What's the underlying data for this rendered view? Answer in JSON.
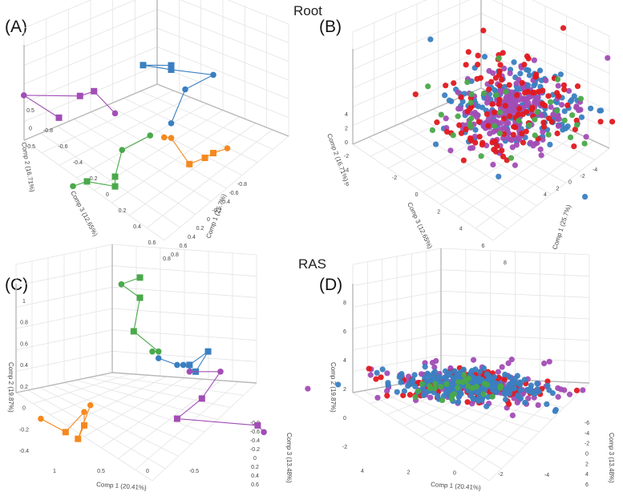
{
  "sections": {
    "top": "Root",
    "bottom": "RAS"
  },
  "colors": {
    "blue": "#3a7fc1",
    "green": "#4aa94a",
    "orange": "#f5891f",
    "purple": "#a24db5",
    "red": "#e0191f"
  },
  "chart_data": [
    {
      "id": "A",
      "type": "scatter",
      "panel_label": "(A)",
      "title": "",
      "axes": {
        "x": {
          "label": "Comp 1 (25.7%)",
          "ticks": [
            "0.8",
            "0.6",
            "0.4",
            "0.2",
            "0",
            "-0.2",
            "-0.4",
            "-0.6",
            "-0.8"
          ]
        },
        "y": {
          "label": "Comp 2 (16.71%)",
          "ticks": [
            "0.5",
            "0",
            "-0.5"
          ]
        },
        "z": {
          "label": "Comp 3 (12.65%)",
          "ticks": [
            "-0.8",
            "-0.6",
            "-0.4",
            "-0.2",
            "0",
            "0.2",
            "0.4",
            "0.6",
            "0.8"
          ]
        }
      },
      "series": [
        {
          "color": "blue",
          "connected": true,
          "points": [
            {
              "x": -0.2,
              "y": 0.45,
              "z": -0.3,
              "marker": "square"
            },
            {
              "x": -0.35,
              "y": 0.4,
              "z": -0.25,
              "marker": "square"
            },
            {
              "x": -0.3,
              "y": 0.3,
              "z": -0.4,
              "marker": "square"
            },
            {
              "x": -0.05,
              "y": 0.35,
              "z": -0.45,
              "marker": "circle"
            },
            {
              "x": -0.1,
              "y": 0.25,
              "z": -0.3,
              "marker": "circle"
            },
            {
              "x": 0.0,
              "y": 0.05,
              "z": -0.1,
              "marker": "circle"
            }
          ]
        },
        {
          "color": "orange",
          "connected": true,
          "points": [
            {
              "x": 0.5,
              "y": 0.1,
              "z": 0.0,
              "marker": "circle"
            },
            {
              "x": 0.45,
              "y": 0.05,
              "z": 0.05,
              "marker": "square"
            },
            {
              "x": 0.42,
              "y": 0.0,
              "z": 0.08,
              "marker": "square"
            },
            {
              "x": 0.38,
              "y": -0.05,
              "z": 0.15,
              "marker": "square"
            },
            {
              "x": 0.1,
              "y": 0.0,
              "z": 0.0,
              "marker": "circle"
            },
            {
              "x": 0.05,
              "y": -0.02,
              "z": 0.0,
              "marker": "circle"
            }
          ]
        },
        {
          "color": "green",
          "connected": true,
          "points": [
            {
              "x": 0.0,
              "y": 0.0,
              "z": 0.05,
              "marker": "circle"
            },
            {
              "x": -0.05,
              "y": -0.1,
              "z": 0.2,
              "marker": "circle"
            },
            {
              "x": 0.05,
              "y": -0.25,
              "z": 0.35,
              "marker": "square"
            },
            {
              "x": 0.1,
              "y": -0.3,
              "z": 0.4,
              "marker": "square"
            },
            {
              "x": -0.05,
              "y": -0.3,
              "z": 0.45,
              "marker": "square"
            },
            {
              "x": -0.1,
              "y": -0.35,
              "z": 0.5,
              "marker": "circle"
            }
          ]
        },
        {
          "color": "purple",
          "connected": true,
          "points": [
            {
              "x": -0.3,
              "y": 0.05,
              "z": 0.0,
              "marker": "circle"
            },
            {
              "x": -0.55,
              "y": 0.1,
              "z": -0.1,
              "marker": "square"
            },
            {
              "x": -0.6,
              "y": 0.05,
              "z": -0.05,
              "marker": "square"
            },
            {
              "x": -0.95,
              "y": -0.1,
              "z": 0.0,
              "marker": "circle"
            },
            {
              "x": -0.6,
              "y": -0.1,
              "z": 0.1,
              "marker": "square"
            }
          ]
        }
      ]
    },
    {
      "id": "B",
      "type": "scatter",
      "panel_label": "(B)",
      "title": "",
      "axes": {
        "x": {
          "label": "Comp 1 (25.7%)",
          "ticks": [
            "4",
            "2",
            "0",
            "-2",
            "-4"
          ]
        },
        "y": {
          "label": "Comp 2 (16.71%)",
          "ticks": [
            "4",
            "2",
            "0",
            "-2",
            "-4",
            "-6"
          ]
        },
        "z": {
          "label": "Comp 3 (12.65%)",
          "ticks": [
            "-2",
            "0",
            "2",
            "4",
            "6",
            "8"
          ]
        }
      },
      "series": [
        {
          "color": "blue",
          "note": "dense cluster of circles centred near origin (spread ±4)"
        },
        {
          "color": "green",
          "note": "sparse circles within the cluster"
        },
        {
          "color": "red",
          "note": "circles scattered through and around the cluster"
        },
        {
          "color": "purple",
          "note": "circles forming the bulk of the cluster"
        }
      ]
    },
    {
      "id": "C",
      "type": "scatter",
      "panel_label": "(C)",
      "title": "",
      "axes": {
        "x": {
          "label": "Comp 1 (20.41%)",
          "ticks": [
            "1",
            "0.5",
            "0",
            "-0.5"
          ]
        },
        "y": {
          "label": "Comp 2 (19.87%)",
          "ticks": [
            "1",
            "0.8",
            "0.6",
            "0.4",
            "0.2",
            "0",
            "-0.2",
            "-0.4"
          ]
        },
        "z": {
          "label": "Comp 3 (13.48%)",
          "ticks": [
            "-0.8",
            "-0.6",
            "-0.4",
            "-0.2",
            "0",
            "0.2",
            "0.4",
            "0.6"
          ]
        }
      },
      "series": [
        {
          "color": "green",
          "connected": true,
          "points": [
            {
              "x": 0.2,
              "y": 1.0,
              "z": 0.0,
              "marker": "square"
            },
            {
              "x": 0.35,
              "y": 0.95,
              "z": 0.0,
              "marker": "circle"
            },
            {
              "x": 0.2,
              "y": 0.85,
              "z": 0.0,
              "marker": "square"
            },
            {
              "x": 0.25,
              "y": 0.6,
              "z": 0.0,
              "marker": "square"
            },
            {
              "x": 0.05,
              "y": 0.45,
              "z": 0.0,
              "marker": "circle"
            },
            {
              "x": 0.1,
              "y": 0.45,
              "z": 0.0,
              "marker": "circle"
            }
          ]
        },
        {
          "color": "blue",
          "connected": true,
          "points": [
            {
              "x": 0.05,
              "y": 0.4,
              "z": 0.0,
              "marker": "circle"
            },
            {
              "x": -0.1,
              "y": 0.35,
              "z": 0.0,
              "marker": "circle"
            },
            {
              "x": -0.2,
              "y": 0.35,
              "z": 0.0,
              "marker": "square"
            },
            {
              "x": -0.35,
              "y": 0.45,
              "z": 0.0,
              "marker": "square"
            },
            {
              "x": -0.25,
              "y": 0.3,
              "z": 0.0,
              "marker": "square"
            },
            {
              "x": -0.15,
              "y": 0.35,
              "z": 0.0,
              "marker": "circle"
            }
          ]
        },
        {
          "color": "orange",
          "connected": true,
          "points": [
            {
              "x": 1.0,
              "y": -0.05,
              "z": 0.0,
              "marker": "circle"
            },
            {
              "x": 0.8,
              "y": -0.15,
              "z": 0.0,
              "marker": "square"
            },
            {
              "x": 0.65,
              "y": 0.0,
              "z": 0.0,
              "marker": "circle"
            },
            {
              "x": 0.65,
              "y": -0.1,
              "z": 0.0,
              "marker": "square"
            },
            {
              "x": 0.7,
              "y": -0.2,
              "z": 0.0,
              "marker": "square"
            },
            {
              "x": 0.6,
              "y": 0.05,
              "z": 0.0,
              "marker": "circle"
            }
          ]
        },
        {
          "color": "purple",
          "connected": true,
          "points": [
            {
              "x": -0.2,
              "y": 0.3,
              "z": 0.0,
              "marker": "circle"
            },
            {
              "x": -0.45,
              "y": 0.3,
              "z": 0.0,
              "marker": "circle"
            },
            {
              "x": -0.3,
              "y": 0.1,
              "z": 0.0,
              "marker": "square"
            },
            {
              "x": -0.1,
              "y": -0.05,
              "z": 0.0,
              "marker": "square"
            },
            {
              "x": -0.75,
              "y": -0.1,
              "z": 0.0,
              "marker": "square"
            },
            {
              "x": -0.8,
              "y": -0.15,
              "z": 0.0,
              "marker": "circle"
            }
          ]
        }
      ]
    },
    {
      "id": "D",
      "type": "scatter",
      "panel_label": "(D)",
      "title": "",
      "axes": {
        "x": {
          "label": "Comp 1 (20.41%)",
          "ticks": [
            "4",
            "2",
            "0",
            "-2",
            "-4"
          ]
        },
        "y": {
          "label": "Comp 2 (19.87%)",
          "ticks": [
            "8",
            "6",
            "4",
            "2",
            "0",
            "-2"
          ]
        },
        "z": {
          "label": "Comp 3 (13.48%)",
          "ticks": [
            "-6",
            "-4",
            "-2",
            "0",
            "2",
            "4",
            "6"
          ]
        }
      },
      "series": [
        {
          "color": "blue",
          "note": "dense cluster of circles centred near origin"
        },
        {
          "color": "green",
          "note": "sparse circles within the cluster"
        },
        {
          "color": "red",
          "note": "circles scattered through the cluster"
        },
        {
          "color": "purple",
          "note": "circles spread widely, including an upward tail to y≈8"
        }
      ]
    }
  ]
}
